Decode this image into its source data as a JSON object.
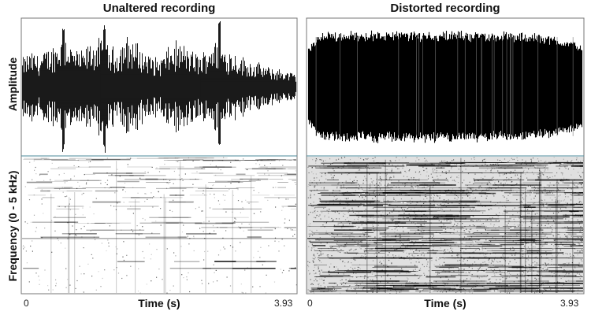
{
  "chart_data": [
    {
      "type": "area",
      "panel": "left-top",
      "title": "Unaltered recording",
      "ylabel": "Amplitude",
      "xlabel": "Time (s)",
      "x_ticks": [
        "0",
        "3.93"
      ],
      "xlim": [
        0,
        3.93
      ],
      "envelope": [
        0.45,
        0.55,
        0.5,
        0.6,
        0.7,
        0.85,
        0.6,
        0.55,
        0.7,
        0.75,
        0.65,
        0.6,
        0.8,
        0.75,
        0.6,
        0.5,
        0.45,
        0.6,
        0.7,
        0.65,
        0.55,
        0.5,
        0.75,
        0.7,
        0.6,
        0.55,
        0.45,
        0.4,
        0.35,
        0.3,
        0.28,
        0.25,
        0.2
      ],
      "spikes": [
        0.15,
        0.3,
        0.72
      ],
      "color": "#000000"
    },
    {
      "type": "area",
      "panel": "right-top",
      "title": "Distorted recording",
      "xlabel": "Time (s)",
      "x_ticks": [
        "0",
        "3.93"
      ],
      "xlim": [
        0,
        3.93
      ],
      "envelope": [
        0.7,
        0.95,
        0.97,
        0.98,
        0.97,
        0.98,
        0.97,
        0.98,
        0.97,
        0.98,
        0.97,
        0.98,
        0.97,
        0.97,
        0.96,
        0.96,
        0.95,
        0.94,
        0.92,
        0.88,
        0.82,
        0.75
      ],
      "color": "#000000"
    },
    {
      "type": "heatmap",
      "panel": "left-bottom",
      "ylabel": "Frequency (0 - 5 kHz)",
      "density": "sparse"
    },
    {
      "type": "heatmap",
      "panel": "right-bottom",
      "density": "dense"
    }
  ],
  "colors": {
    "frame": "#777777",
    "divider": "#4a8a9a",
    "trace": "#000000"
  }
}
